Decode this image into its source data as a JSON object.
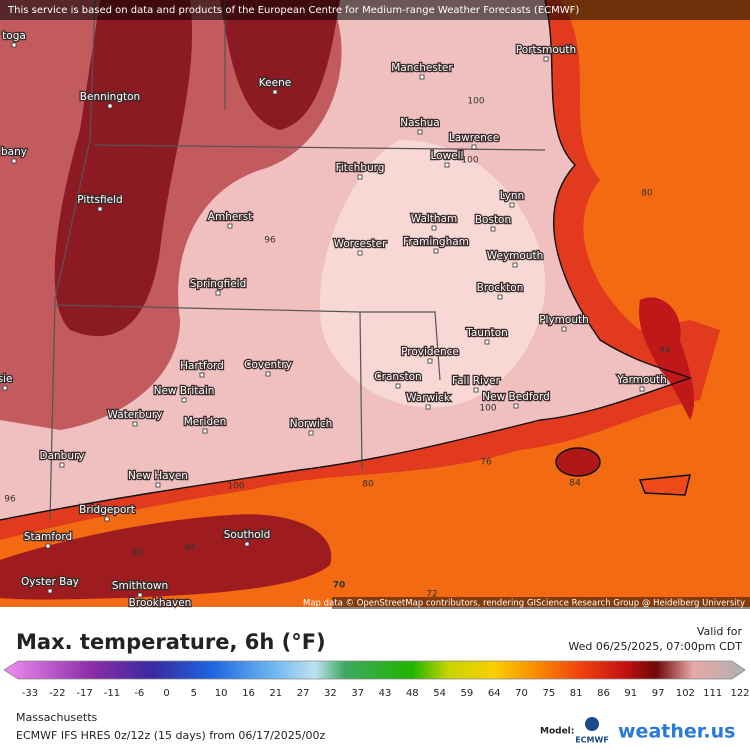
{
  "banner": "This service is based on data and products of the European Centre for Medium-range Weather Forecasts (ECMWF)",
  "cities": [
    "toga",
    "Bennington",
    "Keene",
    "Manchester",
    "Portsmouth",
    "Nashua",
    "Lawrence",
    "bany",
    "Lowell",
    "Fitchburg",
    "Lynn",
    "Pittsfield",
    "Amherst",
    "Waltham",
    "Boston",
    "Worcester",
    "Framingham",
    "Weymouth",
    "Springfield",
    "Brockton",
    "Plymouth",
    "Taunton",
    "Providence",
    "Hartford",
    "Coventry",
    "Cranston",
    "Fall River",
    "Yarmouth",
    "New Britain",
    "Warwick",
    "New Bedford",
    "Waterbury",
    "Meriden",
    "Norwich",
    "Danbury",
    "New Haven",
    "Bridgeport",
    "Southold",
    "Stamford",
    "Oyster Bay",
    "Smithtown",
    "Brookhaven",
    "sie"
  ],
  "contours": [
    "100",
    "100",
    "80",
    "96",
    "84",
    "100",
    "76",
    "84",
    "100",
    "80",
    "96",
    "88",
    "84",
    "70",
    "72"
  ],
  "attribution": "Map data © OpenStreetMap contributors, rendering GIScience Research Group @ Heidelberg University",
  "title": "Max. temperature, 6h (°F)",
  "valid_label": "Valid for",
  "valid_time": "Wed 06/25/2025, 07:00pm CDT",
  "legend": {
    "ticks": [
      -33,
      -22,
      -17,
      -11,
      -6,
      0,
      5,
      10,
      16,
      21,
      27,
      32,
      37,
      43,
      48,
      54,
      59,
      64,
      70,
      75,
      81,
      86,
      91,
      97,
      102,
      111,
      122
    ]
  },
  "region": "Massachusetts",
  "model_info": "ECMWF IFS HRES 0z/12z (15 days) from 06/17/2025/00z",
  "model_label": "Model:",
  "logos": [
    "ECMWF",
    "weather.us"
  ]
}
